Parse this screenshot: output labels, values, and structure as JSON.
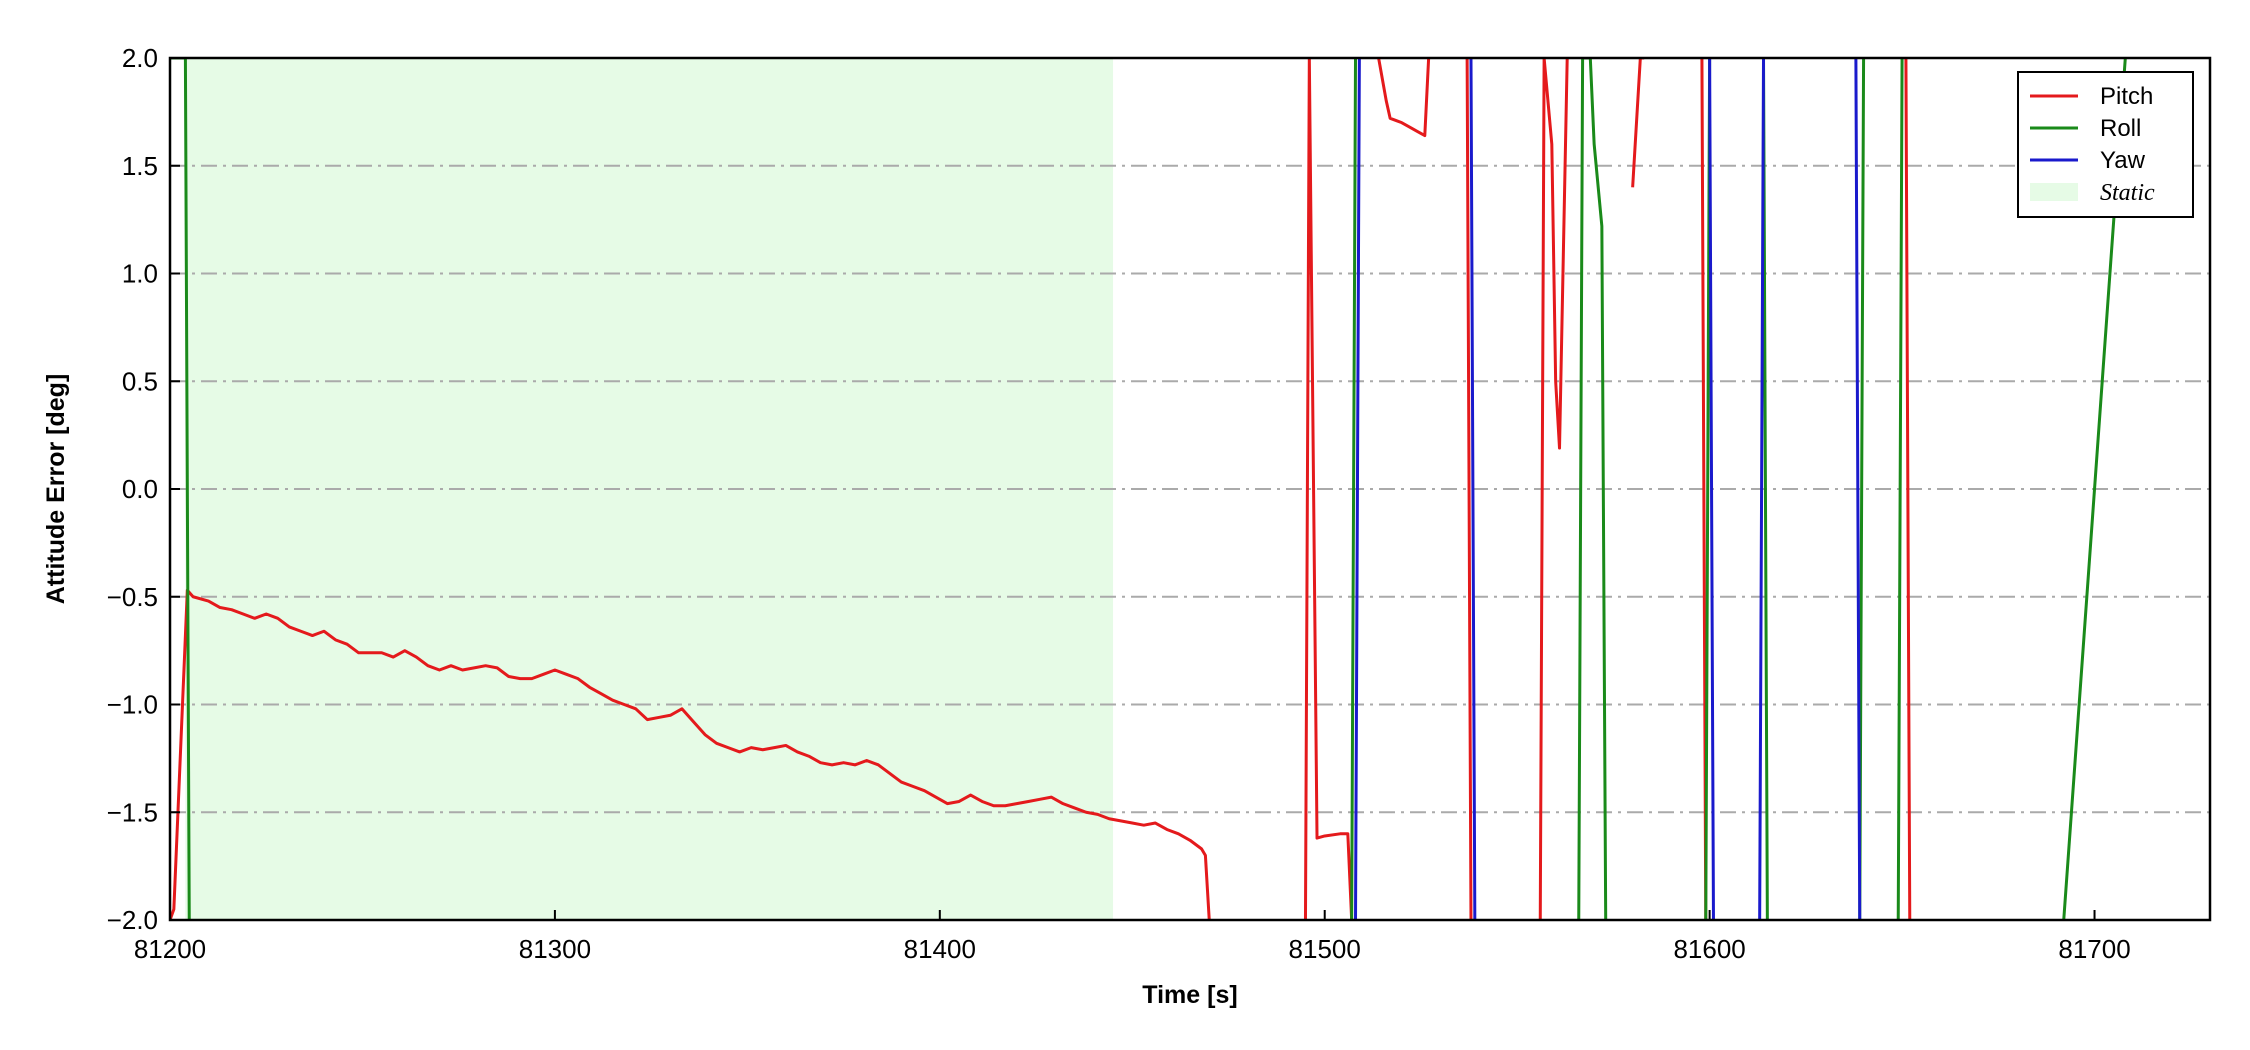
{
  "chart_data": {
    "type": "line",
    "xlabel": "Time [s]",
    "ylabel": "Attitude Error [deg]",
    "xlim": [
      81200,
      81730
    ],
    "ylim": [
      -2.0,
      2.0
    ],
    "x_ticks": [
      81200,
      81300,
      81400,
      81500,
      81600,
      81700
    ],
    "x_tick_labels": [
      "81200",
      "81300",
      "81400",
      "81500",
      "81600",
      "81700"
    ],
    "y_ticks": [
      -2.0,
      -1.5,
      -1.0,
      -0.5,
      0.0,
      0.5,
      1.0,
      1.5,
      2.0
    ],
    "y_tick_labels": [
      "−2.0",
      "−1.5",
      "−1.0",
      "−0.5",
      "0.0",
      "0.5",
      "1.0",
      "1.5",
      "2.0"
    ],
    "grid": {
      "axis": "y",
      "style": "dash-dot",
      "color": "#aaaaaa"
    },
    "legend": {
      "placement": "top-right",
      "entries": [
        "Pitch",
        "Roll",
        "Yaw",
        "Static"
      ]
    },
    "static_region": {
      "label": "Static",
      "x_start": 81204,
      "x_end": 81445,
      "color": "#e6fbe6"
    },
    "series": [
      {
        "name": "Pitch",
        "color": "#e41a1c",
        "x": [
          81200,
          81201,
          81204.5,
          81206,
          81210,
          81213,
          81216,
          81219,
          81222,
          81225,
          81228,
          81231,
          81234,
          81237,
          81240,
          81243,
          81246,
          81249,
          81252,
          81255,
          81258,
          81261,
          81264,
          81267,
          81270,
          81273,
          81276,
          81279,
          81282,
          81285,
          81288,
          81291,
          81294,
          81297,
          81300,
          81303,
          81306,
          81309,
          81312,
          81315,
          81318,
          81321,
          81324,
          81327,
          81330,
          81333,
          81336,
          81339,
          81342,
          81345,
          81348,
          81351,
          81354,
          81357,
          81360,
          81363,
          81366,
          81369,
          81372,
          81375,
          81378,
          81381,
          81384,
          81387,
          81390,
          81393,
          81396,
          81399,
          81402,
          81405,
          81408,
          81411,
          81414,
          81417,
          81420,
          81423,
          81426,
          81429,
          81432,
          81435,
          81438,
          81441,
          81444,
          81447,
          81450,
          81453,
          81456,
          81459,
          81462,
          81465,
          81468,
          81469,
          81470,
          null,
          81495,
          81496,
          81498,
          81500,
          81504,
          81506,
          81507,
          null,
          81514,
          81516,
          81517,
          81520,
          81524,
          81526,
          81527,
          null,
          81537,
          81538,
          null,
          81556,
          81557,
          81559,
          81560,
          81561,
          81563,
          null,
          81580,
          81581,
          81582,
          81583,
          null,
          81598,
          81599,
          null,
          81651,
          81652
        ],
        "values": [
          -2.0,
          -1.95,
          -0.47,
          -0.5,
          -0.52,
          -0.55,
          -0.56,
          -0.58,
          -0.6,
          -0.58,
          -0.6,
          -0.64,
          -0.66,
          -0.68,
          -0.66,
          -0.7,
          -0.72,
          -0.76,
          -0.76,
          -0.76,
          -0.78,
          -0.75,
          -0.78,
          -0.82,
          -0.84,
          -0.82,
          -0.84,
          -0.83,
          -0.82,
          -0.83,
          -0.87,
          -0.88,
          -0.88,
          -0.86,
          -0.84,
          -0.86,
          -0.88,
          -0.92,
          -0.95,
          -0.98,
          -1.0,
          -1.02,
          -1.07,
          -1.06,
          -1.05,
          -1.02,
          -1.08,
          -1.14,
          -1.18,
          -1.2,
          -1.22,
          -1.2,
          -1.21,
          -1.2,
          -1.19,
          -1.22,
          -1.24,
          -1.27,
          -1.28,
          -1.27,
          -1.28,
          -1.26,
          -1.28,
          -1.32,
          -1.36,
          -1.38,
          -1.4,
          -1.43,
          -1.46,
          -1.45,
          -1.42,
          -1.45,
          -1.47,
          -1.47,
          -1.46,
          -1.45,
          -1.44,
          -1.43,
          -1.46,
          -1.48,
          -1.5,
          -1.51,
          -1.53,
          -1.54,
          -1.55,
          -1.56,
          -1.55,
          -1.58,
          -1.6,
          -1.63,
          -1.67,
          -1.7,
          -2.0,
          null,
          -2.0,
          2.0,
          -1.62,
          -1.61,
          -1.6,
          -1.6,
          -2.0,
          null,
          2.0,
          1.8,
          1.72,
          1.7,
          1.66,
          1.64,
          2.0,
          null,
          2.0,
          -2.0,
          null,
          -2.0,
          2.0,
          1.6,
          0.5,
          0.19,
          2.0,
          null,
          1.4,
          1.7,
          2.0,
          2.0,
          null,
          2.0,
          -2.0,
          null,
          2.0,
          -2.0
        ]
      },
      {
        "name": "Roll",
        "color": "#1a8a1a",
        "x": [
          81200,
          81204,
          81205,
          null,
          81507,
          81508,
          null,
          81566,
          81567,
          81568,
          81569,
          81570,
          81572,
          81573,
          null,
          81599,
          81600,
          null,
          81614,
          81615,
          null,
          81639,
          81640,
          null,
          81649,
          81650,
          null,
          81692,
          81708
        ],
        "values": [
          2.0,
          2.0,
          -2.0,
          null,
          -2.0,
          2.0,
          null,
          -2.0,
          2.0,
          2.0,
          2.0,
          1.6,
          1.22,
          -2.0,
          null,
          -2.0,
          2.0,
          null,
          2.0,
          -2.0,
          null,
          -2.0,
          2.0,
          null,
          -2.0,
          2.0,
          null,
          -2.0,
          2.0
        ]
      },
      {
        "name": "Yaw",
        "color": "#1a1acc",
        "x": [
          81508,
          81509,
          null,
          81538,
          81539,
          null,
          81600,
          81601,
          null,
          81613,
          81614,
          null,
          81638,
          81639
        ],
        "values": [
          -2.0,
          2.0,
          null,
          2.0,
          -2.0,
          null,
          2.0,
          -2.0,
          null,
          -2.0,
          2.0,
          null,
          2.0,
          -2.0
        ]
      }
    ]
  }
}
